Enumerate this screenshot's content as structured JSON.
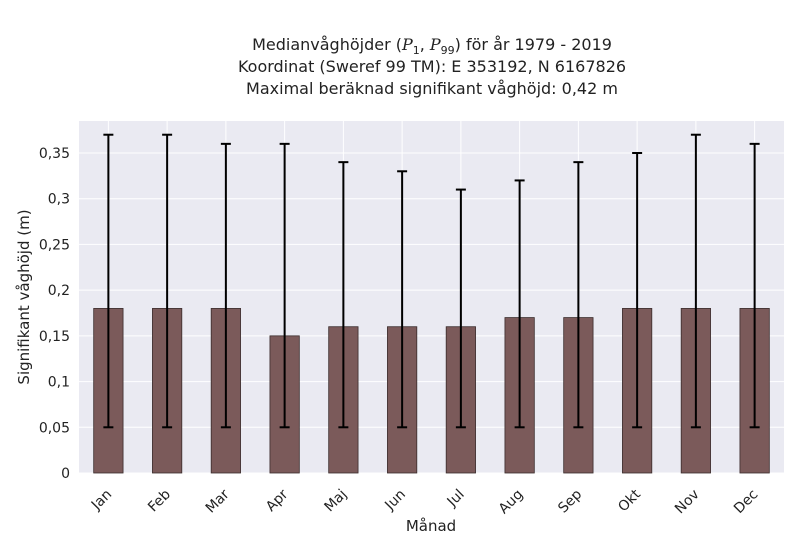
{
  "chart_data": {
    "type": "bar",
    "title_lines": {
      "line1_prefix": "Medianvåghöjder (",
      "p_symbol": "P",
      "p1_sub": "1",
      "p99_sub": "99",
      "line1_suffix": ") för år 1979 - 2019",
      "line2": "Koordinat (Sweref 99 TM): E 353192, N 6167826",
      "line3": "Maximal beräknad signifikant våghöjd: 0,42 m"
    },
    "xlabel": "Månad",
    "ylabel": "Signifikant våghöjd (m)",
    "categories": [
      "Jan",
      "Feb",
      "Mar",
      "Apr",
      "Maj",
      "Jun",
      "Jul",
      "Aug",
      "Sep",
      "Okt",
      "Nov",
      "Dec"
    ],
    "values": [
      0.18,
      0.18,
      0.18,
      0.15,
      0.16,
      0.16,
      0.16,
      0.17,
      0.17,
      0.18,
      0.18,
      0.18
    ],
    "error_low": [
      0.05,
      0.05,
      0.05,
      0.05,
      0.05,
      0.05,
      0.05,
      0.05,
      0.05,
      0.05,
      0.05,
      0.05
    ],
    "error_high": [
      0.37,
      0.37,
      0.36,
      0.36,
      0.34,
      0.33,
      0.31,
      0.32,
      0.34,
      0.35,
      0.37,
      0.36
    ],
    "yticks": [
      0,
      0.05,
      0.1,
      0.15,
      0.2,
      0.25,
      0.3,
      0.35
    ],
    "ytick_labels": [
      "0",
      "0,05",
      "0,1",
      "0,15",
      "0,2",
      "0,25",
      "0,3",
      "0,35"
    ],
    "ylim": [
      0,
      0.385
    ],
    "grid": true,
    "colors": {
      "bar": "#7b5a5a",
      "bar_edge": "#3a2c2c",
      "background": "#eaeaf2",
      "grid": "#ffffff",
      "error": "#000000"
    }
  }
}
